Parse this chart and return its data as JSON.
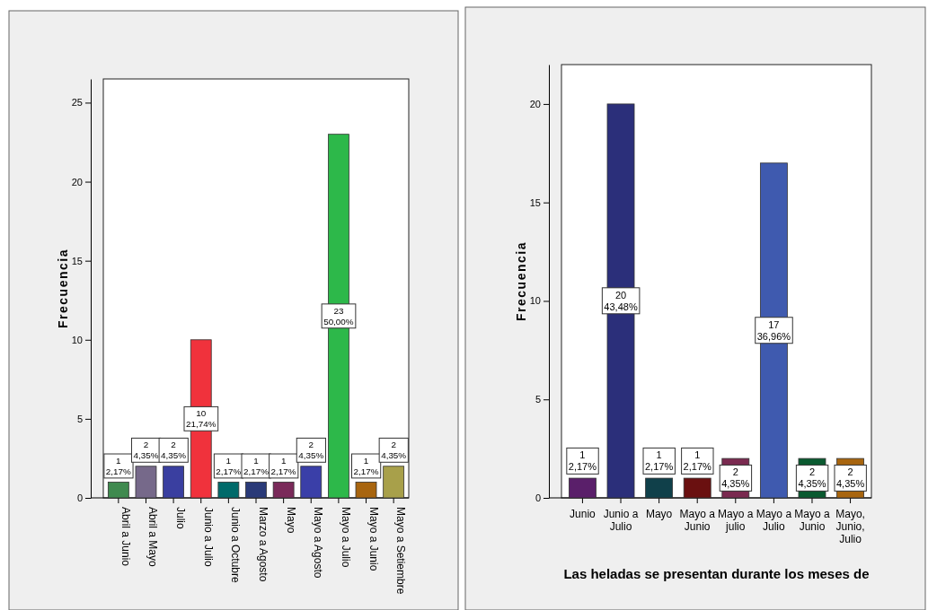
{
  "chart_data": [
    {
      "type": "bar",
      "ylabel": "Frecuencia",
      "categories": [
        "Abril a Junio",
        "Abril a Mayo",
        "Julio",
        "Junio a Julio",
        "Junio a Octubre",
        "Marzo a Agosto",
        "Mayo",
        "Mayo a Agosto",
        "Mayo a Julio",
        "Mayo a Junio",
        "Mayo a Setiembre"
      ],
      "values": [
        1,
        2,
        2,
        10,
        1,
        1,
        1,
        2,
        23,
        1,
        2
      ],
      "colors": [
        "#3f8a4f",
        "#76698a",
        "#3a3fa0",
        "#f0323c",
        "#006a6a",
        "#2a3a78",
        "#7a2a5a",
        "#3a3fa8",
        "#2db84a",
        "#a8650f",
        "#a8a04a"
      ],
      "value_labels": [
        "1\n2,17%",
        "2\n4,35%",
        "2\n4,35%",
        "10\n21,74%",
        "1\n2,17%",
        "1\n2,17%",
        "1\n2,17%",
        "2\n4,35%",
        "23\n50,00%",
        "1\n2,17%",
        "2\n4,35%"
      ],
      "ylim": [
        0,
        26.5
      ],
      "yticks": [
        0,
        5,
        10,
        15,
        20,
        25
      ]
    },
    {
      "type": "bar",
      "xlabel": "Las heladas se presentan durante los meses de",
      "ylabel": "Frecuencia",
      "categories": [
        "Junio",
        "Junio a Julio",
        "Mayo",
        "Mayo a Junio",
        "Mayo a julio",
        "Mayo a Julio",
        "Mayo a Junio",
        "Mayo, Junio, Julio"
      ],
      "values": [
        1,
        20,
        1,
        1,
        2,
        17,
        2,
        2
      ],
      "colors": [
        "#5a1f6a",
        "#2b2f7a",
        "#10404a",
        "#6a1010",
        "#7a2a50",
        "#3f5aaf",
        "#0a5a30",
        "#a8650f"
      ],
      "value_labels": [
        "1\n2,17%",
        "20\n43,48%",
        "1\n2,17%",
        "1\n2,17%",
        "2\n4,35%",
        "17\n36,96%",
        "2\n4,35%",
        "2\n4,35%"
      ],
      "ylim": [
        0,
        22
      ],
      "yticks": [
        0,
        5,
        10,
        15,
        20
      ]
    }
  ]
}
